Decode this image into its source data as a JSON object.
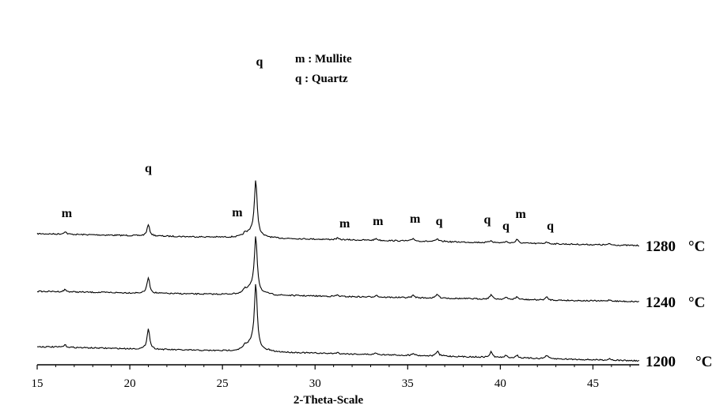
{
  "chart_data": {
    "type": "line",
    "xlabel": "2-Theta-Scale",
    "ylabel": "",
    "xlim": [
      15,
      47.5
    ],
    "x_ticks": [
      15,
      20,
      25,
      30,
      35,
      40,
      45
    ],
    "grid": false,
    "legend_placement": "top-center",
    "legend": [
      {
        "symbol": "m",
        "meaning": "Mullite",
        "text": "m : Mullite"
      },
      {
        "symbol": "q",
        "meaning": "Quartz",
        "text": "q : Quartz"
      }
    ],
    "series": [
      {
        "name": "1280 °C",
        "label_parts": [
          "1280",
          "°C"
        ]
      },
      {
        "name": "1240 °C",
        "label_parts": [
          "1240",
          "°C"
        ]
      },
      {
        "name": "1200 °C",
        "label_parts": [
          "1200",
          "°C"
        ]
      }
    ],
    "peaks": [
      {
        "two_theta": 16.5,
        "phase": "m",
        "rel_intensity": [
          0.12,
          0.1,
          0.1
        ]
      },
      {
        "two_theta": 21.0,
        "phase": "q",
        "rel_intensity": [
          0.5,
          0.72,
          0.95
        ]
      },
      {
        "two_theta": 26.2,
        "phase": "m",
        "rel_intensity": [
          0.1,
          0.12,
          0.12
        ]
      },
      {
        "two_theta": 26.8,
        "phase": "q",
        "rel_intensity": [
          2.45,
          2.5,
          2.9
        ]
      },
      {
        "two_theta": 27.5,
        "phase": "",
        "rel_intensity": [
          0.02,
          0.03,
          0.03
        ]
      },
      {
        "two_theta": 31.2,
        "phase": "m",
        "rel_intensity": [
          0.06,
          0.06,
          0.05
        ]
      },
      {
        "two_theta": 33.3,
        "phase": "m",
        "rel_intensity": [
          0.08,
          0.09,
          0.08
        ]
      },
      {
        "two_theta": 35.3,
        "phase": "m",
        "rel_intensity": [
          0.12,
          0.11,
          0.11
        ]
      },
      {
        "two_theta": 36.6,
        "phase": "q",
        "rel_intensity": [
          0.11,
          0.18,
          0.22
        ]
      },
      {
        "two_theta": 37.0,
        "phase": "",
        "rel_intensity": [
          0.02,
          0.02,
          0.02
        ]
      },
      {
        "two_theta": 39.5,
        "phase": "q",
        "rel_intensity": [
          0.1,
          0.2,
          0.25
        ]
      },
      {
        "two_theta": 40.3,
        "phase": "q",
        "rel_intensity": [
          0.06,
          0.08,
          0.09
        ]
      },
      {
        "two_theta": 40.9,
        "phase": "m",
        "rel_intensity": [
          0.16,
          0.12,
          0.12
        ]
      },
      {
        "two_theta": 42.5,
        "phase": "q",
        "rel_intensity": [
          0.09,
          0.13,
          0.15
        ]
      },
      {
        "two_theta": 45.9,
        "phase": "",
        "rel_intensity": [
          0.05,
          0.06,
          0.07
        ]
      }
    ],
    "peak_labels": [
      {
        "text": "m",
        "two_theta": 16.6
      },
      {
        "text": "q",
        "two_theta": 21.0
      },
      {
        "text": "m",
        "two_theta": 25.8
      },
      {
        "text": "q",
        "two_theta": 27.0
      },
      {
        "text": "m",
        "two_theta": 31.6
      },
      {
        "text": "m",
        "two_theta": 33.4
      },
      {
        "text": "m",
        "two_theta": 35.4
      },
      {
        "text": "q",
        "two_theta": 36.7
      },
      {
        "text": "q",
        "two_theta": 39.3
      },
      {
        "text": "q",
        "two_theta": 40.3
      },
      {
        "text": "m",
        "two_theta": 41.1
      },
      {
        "text": "q",
        "two_theta": 42.7
      }
    ]
  }
}
